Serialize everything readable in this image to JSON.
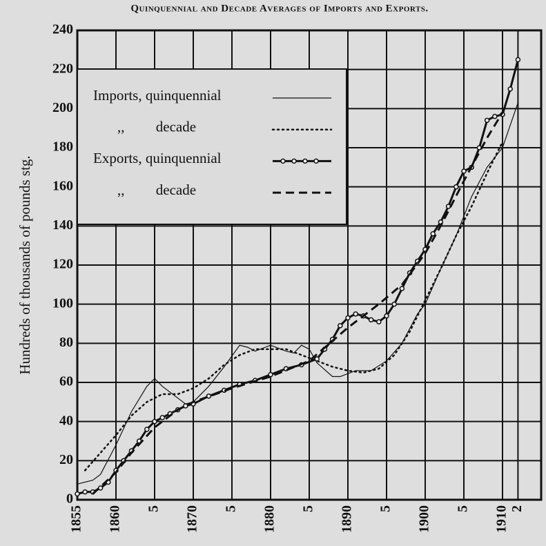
{
  "chart_data": {
    "type": "line",
    "title": "Quinquennial and Decade Averages of Imports and Exports.",
    "ylabel": "Hundreds of thousands of pounds stg.",
    "xlim": [
      1855,
      1915
    ],
    "ylim": [
      0,
      240
    ],
    "xticks": [
      1855,
      1860,
      {
        "value": 1865,
        "label": "5"
      },
      1870,
      {
        "value": 1875,
        "label": "5"
      },
      1880,
      {
        "value": 1885,
        "label": "5"
      },
      1890,
      {
        "value": 1895,
        "label": "5"
      },
      1900,
      {
        "value": 1905,
        "label": "5"
      },
      1910,
      {
        "value": 1912,
        "label": "2"
      },
      {
        "value": 1915,
        "label": ""
      }
    ],
    "yticks": [
      0,
      20,
      40,
      60,
      80,
      100,
      120,
      140,
      160,
      180,
      200,
      220,
      240
    ],
    "grid": true,
    "legend": "upper left",
    "series": [
      {
        "name": "Imports, quinquennial",
        "color": "#111",
        "linestyle": "solid",
        "linewidth": 1.2,
        "marker": null,
        "x": [
          1855,
          1857,
          1858,
          1860,
          1862,
          1864,
          1865,
          1866,
          1868,
          1869,
          1870,
          1872,
          1874,
          1876,
          1877,
          1878,
          1880,
          1882,
          1883,
          1884,
          1885,
          1886,
          1888,
          1889,
          1891,
          1893,
          1895,
          1897,
          1899,
          1900,
          1902,
          1904,
          1906,
          1908,
          1910,
          1912
        ],
        "values": [
          8,
          10,
          13,
          28,
          45,
          58,
          62,
          58,
          52,
          49,
          50,
          58,
          68,
          79,
          78,
          76,
          79,
          76,
          75,
          79,
          77,
          70,
          63,
          63,
          66,
          66,
          71,
          80,
          95,
          100,
          118,
          135,
          155,
          170,
          180,
          203
        ]
      },
      {
        "name": ",, decade",
        "color": "#111",
        "linestyle": "dotted",
        "linewidth": 2.5,
        "marker": null,
        "x": [
          1856,
          1858,
          1860,
          1862,
          1864,
          1866,
          1868,
          1870,
          1872,
          1874,
          1876,
          1878,
          1880,
          1882,
          1884,
          1886,
          1888,
          1890,
          1892,
          1894,
          1896,
          1898,
          1900,
          1902,
          1904,
          1906,
          1908,
          1910
        ],
        "values": [
          15,
          24,
          33,
          43,
          50,
          54,
          54,
          57,
          62,
          69,
          74,
          77,
          77,
          77,
          74,
          71,
          68,
          66,
          65,
          67,
          74,
          86,
          102,
          118,
          135,
          150,
          167,
          183
        ]
      },
      {
        "name": "Exports, quinquennial",
        "color": "#111",
        "linestyle": "solid",
        "linewidth": 3,
        "marker": "o",
        "x": [
          1855,
          1856,
          1857,
          1858,
          1859,
          1860,
          1861,
          1862,
          1863,
          1864,
          1865,
          1866,
          1867,
          1868,
          1869,
          1870,
          1872,
          1874,
          1876,
          1878,
          1880,
          1882,
          1884,
          1886,
          1887,
          1888,
          1889,
          1890,
          1891,
          1892,
          1893,
          1894,
          1895,
          1896,
          1897,
          1898,
          1899,
          1900,
          1901,
          1902,
          1903,
          1904,
          1905,
          1906,
          1907,
          1908,
          1909,
          1910,
          1911,
          1912
        ],
        "values": [
          3,
          4,
          4,
          6,
          9,
          15,
          20,
          25,
          30,
          36,
          40,
          42,
          44,
          46,
          48,
          49,
          53,
          56,
          59,
          61,
          64,
          67,
          69,
          72,
          77,
          82,
          89,
          93,
          95,
          94,
          92,
          91,
          94,
          100,
          108,
          116,
          122,
          128,
          136,
          142,
          150,
          160,
          168,
          170,
          180,
          194,
          196,
          197,
          210,
          225
        ]
      },
      {
        "name": ",, decade",
        "color": "#111",
        "linestyle": "dashed",
        "linewidth": 3,
        "marker": null,
        "x": [
          1857,
          1860,
          1862,
          1865,
          1868,
          1870,
          1875,
          1880,
          1885,
          1890,
          1894,
          1897,
          1900,
          1902,
          1905,
          1908,
          1910
        ],
        "values": [
          3,
          14,
          24,
          37,
          46,
          50,
          57,
          63,
          71,
          88,
          100,
          110,
          126,
          140,
          163,
          185,
          198
        ]
      }
    ]
  }
}
